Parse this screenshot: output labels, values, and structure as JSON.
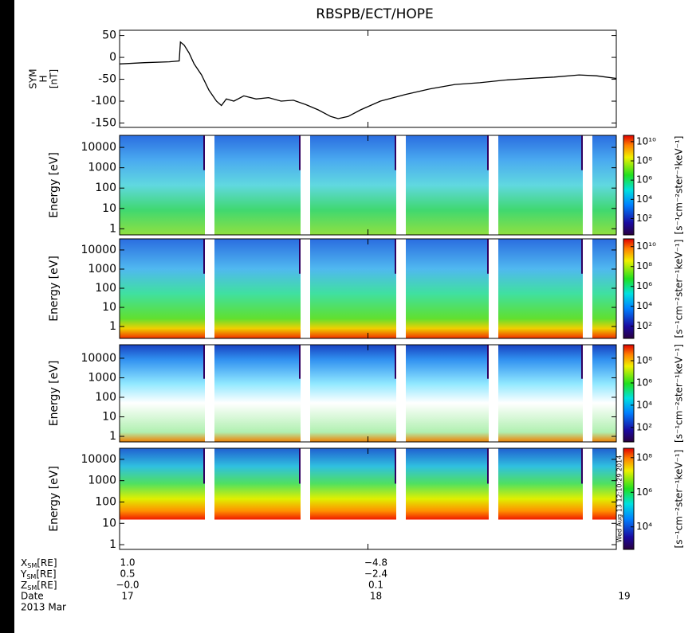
{
  "title": "RBSPB/ECT/HOPE",
  "chart_data": [
    {
      "type": "line",
      "ylabel_lines": [
        "SYM",
        "H",
        "[nT]"
      ],
      "color": "#000000",
      "x": [
        17.0,
        17.1,
        17.2,
        17.24,
        17.245,
        17.26,
        17.28,
        17.3,
        17.33,
        17.36,
        17.39,
        17.41,
        17.43,
        17.46,
        17.5,
        17.55,
        17.6,
        17.65,
        17.7,
        17.75,
        17.8,
        17.85,
        17.88,
        17.92,
        17.97,
        18.05,
        18.15,
        18.25,
        18.35,
        18.45,
        18.55,
        18.65,
        18.75,
        18.85,
        18.92,
        19.0
      ],
      "values": [
        -15,
        -12,
        -10,
        -8,
        35,
        28,
        10,
        -15,
        -40,
        -75,
        -100,
        -110,
        -95,
        -100,
        -88,
        -95,
        -92,
        -100,
        -98,
        -108,
        -120,
        -135,
        -140,
        -135,
        -120,
        -100,
        -85,
        -72,
        -62,
        -58,
        -52,
        -48,
        -45,
        -40,
        -42,
        -48
      ],
      "xlim": [
        17,
        19
      ],
      "xticks": [
        17,
        18,
        19
      ],
      "ylim": [
        -160,
        62
      ],
      "yticks": [
        50,
        0,
        -50,
        -100,
        -150
      ]
    },
    {
      "type": "spectrogram",
      "ylabel": "Energy [eV]",
      "log": true,
      "ylim": [
        0.5,
        39000
      ],
      "yticks": [
        1,
        10,
        100,
        1000,
        10000
      ],
      "clim": [
        2,
        45000000000
      ],
      "cticks": [
        {
          "value": 100,
          "label": "10²"
        },
        {
          "value": 10000,
          "label": "10⁴"
        },
        {
          "value": 1000000,
          "label": "10⁶"
        },
        {
          "value": 100000000,
          "label": "10⁸"
        },
        {
          "value": 10000000000,
          "label": "10¹⁰"
        }
      ],
      "colorbar_label": "[s⁻¹cm⁻²ster⁻¹keV⁻¹]"
    },
    {
      "type": "spectrogram",
      "ylabel": "Energy [eV]",
      "log": true,
      "ylim": [
        0.24,
        38000
      ],
      "yticks": [
        1,
        10,
        100,
        1000,
        10000
      ],
      "clim": [
        6,
        60000000000
      ],
      "cticks": [
        {
          "value": 100,
          "label": "10²"
        },
        {
          "value": 10000,
          "label": "10⁴"
        },
        {
          "value": 1000000,
          "label": "10⁶"
        },
        {
          "value": 100000000,
          "label": "10⁸"
        },
        {
          "value": 10000000000,
          "label": "10¹⁰"
        }
      ],
      "colorbar_label": "[s⁻¹cm⁻²ster⁻¹keV⁻¹]"
    },
    {
      "type": "spectrogram",
      "ylabel": "Energy [eV]",
      "log": true,
      "ylim": [
        0.52,
        49000
      ],
      "yticks": [
        1,
        10,
        100,
        1000,
        10000
      ],
      "clim": [
        5,
        2700000000
      ],
      "cticks": [
        {
          "value": 100,
          "label": "10²"
        },
        {
          "value": 10000,
          "label": "10⁴"
        },
        {
          "value": 1000000,
          "label": "10⁶"
        },
        {
          "value": 100000000,
          "label": "10⁸"
        }
      ],
      "colorbar_label": "[s⁻¹cm⁻²ster⁻¹keV⁻¹]"
    },
    {
      "type": "spectrogram",
      "ylabel": "Energy [eV]",
      "log": true,
      "ylim": [
        0.6,
        33000
      ],
      "yticks": [
        1,
        10,
        100,
        1000,
        10000
      ],
      "clim": [
        500,
        350000000
      ],
      "cticks": [
        {
          "value": 10000,
          "label": "10⁴"
        },
        {
          "value": 1000000,
          "label": "10⁶"
        },
        {
          "value": 100000000,
          "label": "10⁸"
        }
      ],
      "colorbar_label": "[s⁻¹cm⁻²ster⁻¹keV⁻¹]",
      "timestamp": "Wed Aug 13 12:10:29 2014"
    }
  ],
  "ephemeris": [
    {
      "var": "X",
      "sub": "SM",
      "unit": "[RE]",
      "values": [
        "1.0",
        "−4.8"
      ]
    },
    {
      "var": "Y",
      "sub": "SM",
      "unit": "[RE]",
      "values": [
        "0.5",
        "−2.4"
      ]
    },
    {
      "var": "Z",
      "sub": "SM",
      "unit": "[RE]",
      "values": [
        "−0.0",
        "0.1"
      ]
    }
  ],
  "date_label": "Date",
  "month_label": "2013 Mar"
}
